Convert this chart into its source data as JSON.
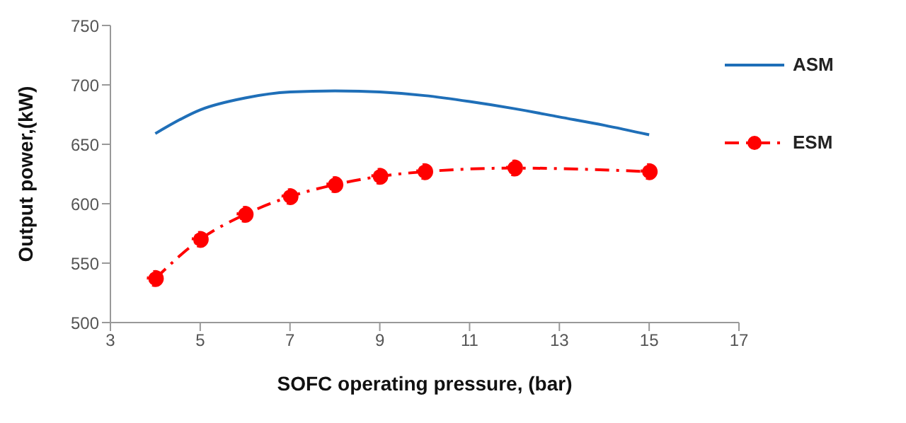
{
  "chart_data": {
    "type": "line",
    "xlabel": "SOFC operating pressure, (bar)",
    "ylabel": "Output power,(kW)",
    "xlim": [
      3,
      17
    ],
    "xticks": [
      3,
      5,
      7,
      9,
      11,
      13,
      15,
      17
    ],
    "ylim": [
      500,
      750
    ],
    "yticks": [
      500,
      550,
      600,
      650,
      700,
      750
    ],
    "grid": false,
    "legend": "top right",
    "series": [
      {
        "name": "ASM",
        "color": "#1f6fb8",
        "marker": "none",
        "line_style": "solid",
        "x": [
          4,
          5,
          6,
          7,
          8,
          9,
          10,
          11,
          12,
          13,
          14,
          15
        ],
        "values": [
          659,
          679,
          689,
          694,
          695,
          694,
          691,
          686,
          680,
          673,
          666,
          658
        ]
      },
      {
        "name": "ESM",
        "color": "#ff0000",
        "marker": "circle",
        "line_style": "dashdot",
        "x": [
          4,
          5,
          6,
          7,
          8,
          9,
          10,
          12,
          15
        ],
        "values": [
          537,
          570,
          591,
          606,
          616,
          623,
          627,
          630,
          627
        ]
      }
    ]
  }
}
